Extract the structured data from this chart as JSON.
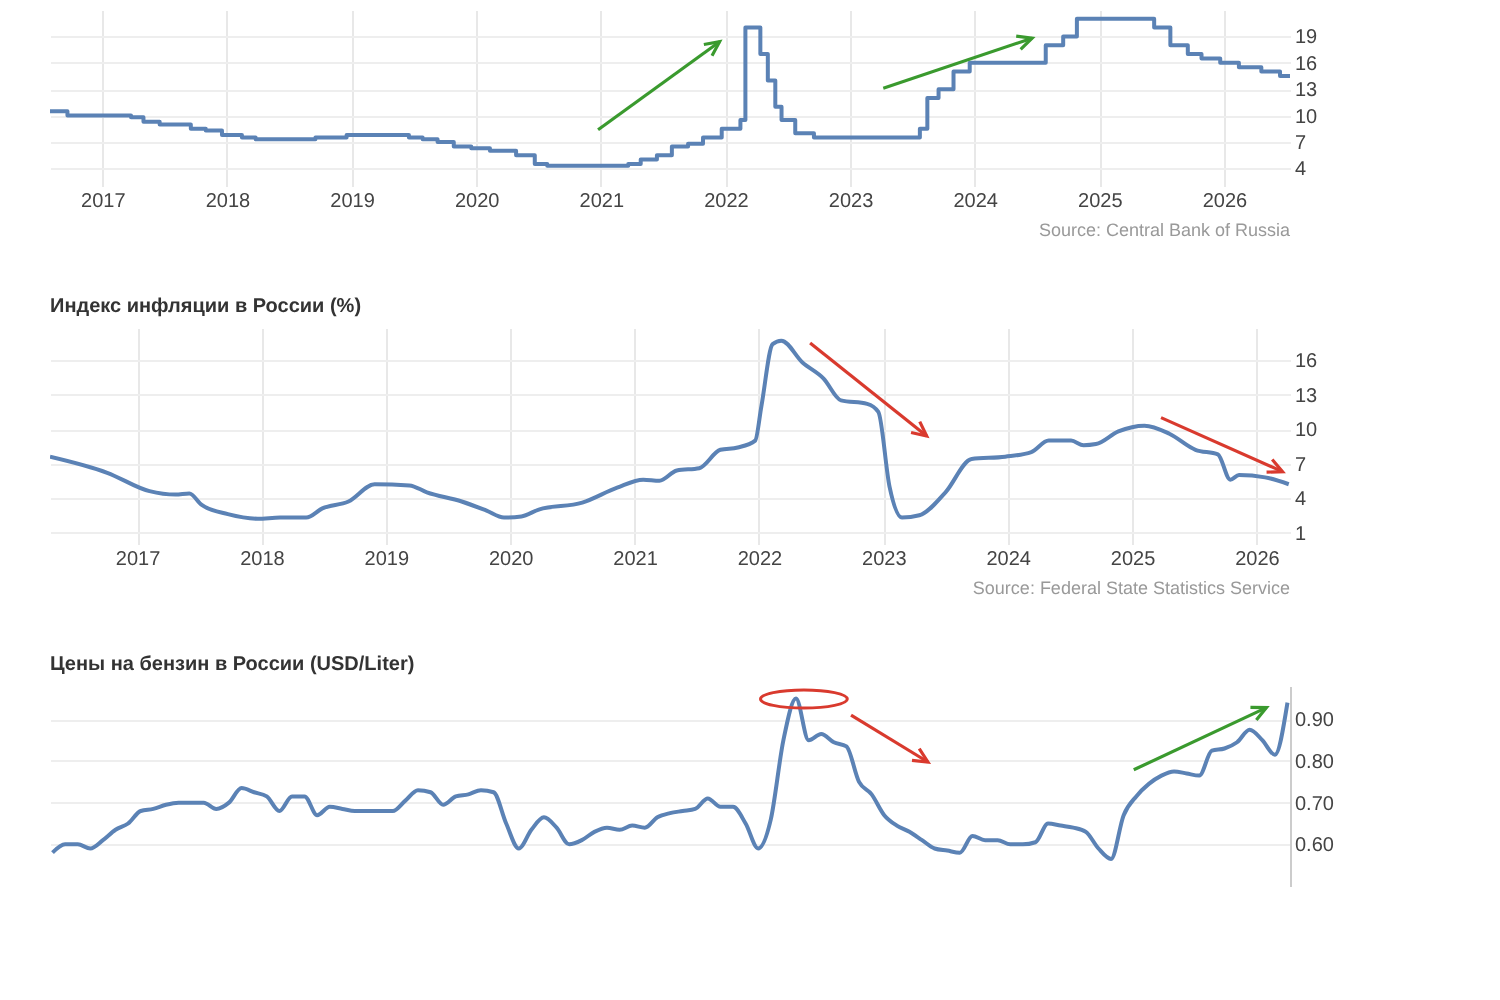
{
  "chart_data": [
    {
      "type": "step",
      "color": "#5b82b5",
      "xlim": [
        2016.58,
        2026.53
      ],
      "xticks": [
        2017,
        2018,
        2019,
        2020,
        2021,
        2022,
        2023,
        2024,
        2025,
        2026
      ],
      "ylim": [
        2,
        22
      ],
      "yticks": [
        4,
        7,
        10,
        13,
        16,
        19
      ],
      "grid": true,
      "x": [
        2016.58,
        2016.72,
        2017.23,
        2017.33,
        2017.46,
        2017.71,
        2017.83,
        2017.96,
        2018.12,
        2018.23,
        2018.71,
        2018.96,
        2019.46,
        2019.57,
        2019.69,
        2019.82,
        2019.96,
        2020.11,
        2020.32,
        2020.47,
        2020.57,
        2021.22,
        2021.32,
        2021.45,
        2021.57,
        2021.7,
        2021.82,
        2021.97,
        2022.12,
        2022.16,
        2022.28,
        2022.34,
        2022.4,
        2022.45,
        2022.56,
        2022.71,
        2023.56,
        2023.62,
        2023.71,
        2023.83,
        2023.96,
        2024.57,
        2024.71,
        2024.82,
        2025.44,
        2025.57,
        2025.71,
        2025.82,
        2025.97,
        2026.12,
        2026.3,
        2026.45,
        2026.53
      ],
      "values": [
        10.5,
        10,
        9.8,
        9.3,
        9,
        8.5,
        8.3,
        7.8,
        7.5,
        7.3,
        7.5,
        7.8,
        7.5,
        7.3,
        7,
        6.5,
        6.3,
        6,
        5.5,
        4.5,
        4.3,
        4.5,
        5,
        5.5,
        6.5,
        6.8,
        7.5,
        8.5,
        9.5,
        20,
        17,
        14,
        11,
        9.5,
        8,
        7.5,
        8.5,
        12,
        13,
        15,
        16,
        18,
        19,
        21,
        20,
        18,
        17,
        16.5,
        16,
        15.5,
        15,
        14.5,
        14.5
      ],
      "annotations": [
        "Source: Central Bank of Russia"
      ]
    },
    {
      "type": "line",
      "title": "Индекс инфляции в России (%)",
      "color": "#5b82b5",
      "xlim": [
        2016.3,
        2026.27
      ],
      "xticks": [
        2017,
        2018,
        2019,
        2020,
        2021,
        2022,
        2023,
        2024,
        2025,
        2026
      ],
      "ylim": [
        0,
        18.8
      ],
      "yticks": [
        1,
        4,
        7,
        10,
        13,
        16
      ],
      "grid": true,
      "x": [
        2016.3,
        2016.76,
        2017.1,
        2017.31,
        2017.42,
        2017.52,
        2017.73,
        2017.97,
        2018.15,
        2018.36,
        2018.49,
        2018.7,
        2018.91,
        2019.19,
        2019.33,
        2019.61,
        2019.81,
        2019.95,
        2020.09,
        2020.23,
        2020.58,
        2020.86,
        2021.07,
        2021.2,
        2021.34,
        2021.52,
        2021.69,
        2021.83,
        2021.97,
        2022.02,
        2022.11,
        2022.18,
        2022.35,
        2022.52,
        2022.66,
        2022.87,
        2022.96,
        2023.05,
        2023.15,
        2023.29,
        2023.5,
        2023.71,
        2023.98,
        2024.19,
        2024.33,
        2024.51,
        2024.61,
        2024.71,
        2024.89,
        2025.1,
        2025.3,
        2025.51,
        2025.69,
        2025.79,
        2025.86,
        2026.07,
        2026.26
      ],
      "values": [
        7.6,
        6.2,
        4.6,
        4.3,
        4.4,
        3.4,
        2.6,
        2.2,
        2.3,
        2.3,
        3.1,
        3.7,
        5.2,
        5.1,
        4.5,
        3.7,
        2.9,
        2.3,
        2.4,
        3.0,
        3.6,
        4.9,
        5.6,
        5.5,
        6.4,
        6.6,
        8.2,
        8.4,
        9.0,
        12,
        17.4,
        17.7,
        15.8,
        14.4,
        12.5,
        12.2,
        11.5,
        5.0,
        2.3,
        2.5,
        4.5,
        7.4,
        7.6,
        8.0,
        9.0,
        9.0,
        8.6,
        8.7,
        9.8,
        10.3,
        9.6,
        8.2,
        7.8,
        5.6,
        6.0,
        5.8,
        5.2
      ],
      "annotations": [
        "Source: Federal State Statistics Service"
      ]
    },
    {
      "type": "line",
      "title": "Цены на бензин в России (USD/Liter)",
      "color": "#5b82b5",
      "ylim": [
        0.5,
        0.98
      ],
      "yticks": [
        {
          "value": 0.6,
          "label": "0.60"
        },
        {
          "value": 0.7,
          "label": "0.70"
        },
        {
          "value": 0.8,
          "label": "0.80"
        },
        {
          "value": 0.9,
          "label": "0.90"
        }
      ],
      "grid": "y",
      "tick_labels": "y",
      "categories": [
        null,
        null,
        null,
        null,
        null,
        null,
        null,
        null,
        null,
        null,
        null,
        null,
        null,
        null,
        null,
        null,
        null,
        null,
        null,
        null,
        null,
        null,
        null,
        null,
        null,
        null,
        null,
        null,
        null,
        null,
        null,
        null,
        null,
        null,
        null,
        null,
        null,
        null,
        null,
        null,
        null,
        null,
        null,
        null,
        null,
        null,
        null,
        null,
        null,
        null,
        null,
        null,
        null,
        null,
        null,
        null,
        null,
        null,
        null,
        null,
        null,
        null,
        null,
        null,
        null,
        null,
        null,
        null,
        null,
        null,
        null,
        null,
        null,
        null,
        null,
        null,
        null,
        null,
        null,
        null,
        null,
        null,
        null,
        null,
        null,
        null,
        null,
        null,
        null,
        null,
        null,
        null,
        null,
        null,
        null,
        null,
        null,
        null,
        null
      ],
      "values": [
        0.58,
        0.6,
        0.6,
        0.59,
        0.61,
        0.635,
        0.65,
        0.68,
        0.685,
        0.695,
        0.7,
        0.7,
        0.7,
        0.685,
        0.7,
        0.735,
        0.725,
        0.715,
        0.68,
        0.715,
        0.715,
        0.67,
        0.69,
        0.685,
        0.68,
        0.68,
        0.68,
        0.68,
        0.705,
        0.73,
        0.725,
        0.695,
        0.715,
        0.72,
        0.73,
        0.725,
        0.65,
        0.59,
        0.635,
        0.665,
        0.64,
        0.6,
        0.61,
        0.63,
        0.64,
        0.635,
        0.645,
        0.64,
        0.665,
        0.675,
        0.68,
        0.685,
        0.71,
        0.69,
        0.69,
        0.65,
        0.59,
        0.66,
        0.85,
        0.95,
        0.85,
        0.865,
        0.845,
        0.835,
        0.75,
        0.72,
        0.67,
        0.645,
        0.63,
        0.61,
        0.59,
        0.585,
        0.58,
        0.62,
        0.61,
        0.61,
        0.6,
        0.6,
        0.605,
        0.65,
        0.645,
        0.64,
        0.63,
        0.59,
        0.565,
        0.67,
        0.715,
        0.745,
        0.765,
        0.775,
        0.77,
        0.765,
        0.825,
        0.83,
        0.845,
        0.875,
        0.85,
        0.815,
        0.94
      ]
    }
  ]
}
